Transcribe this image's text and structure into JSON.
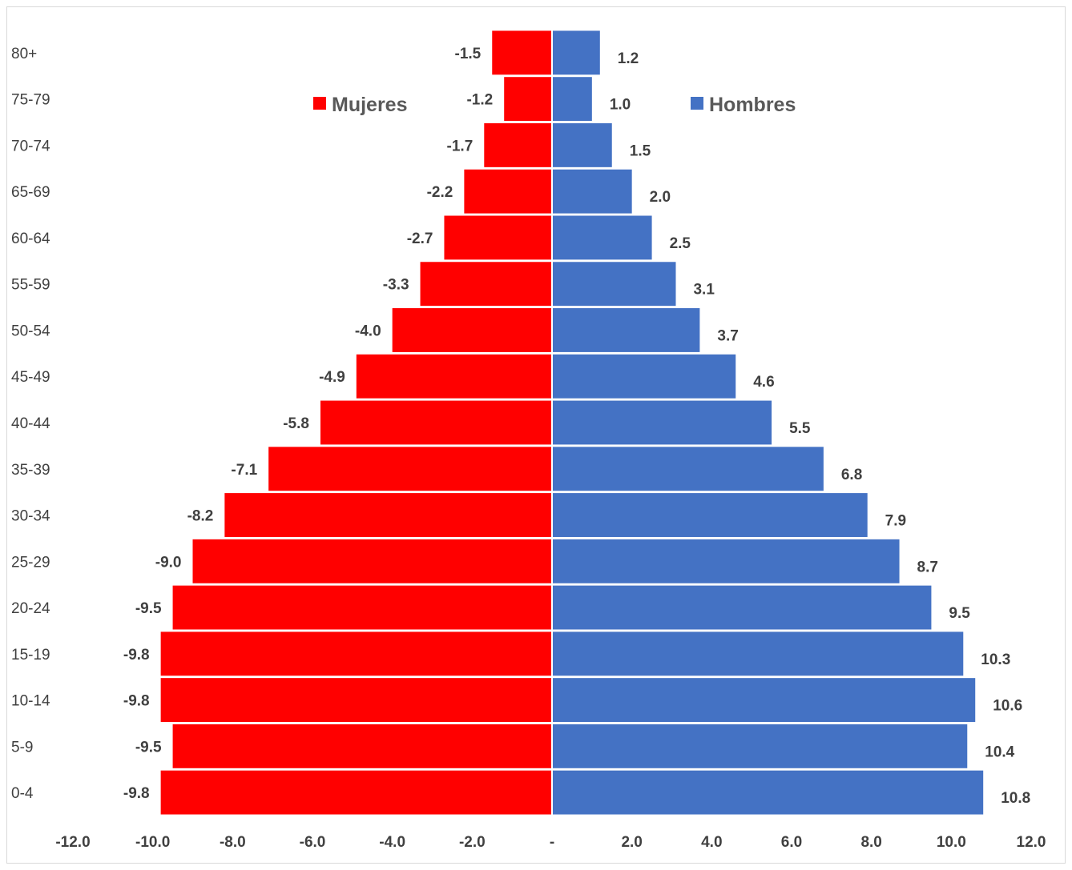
{
  "chart_data": {
    "type": "bar",
    "orientation": "horizontal",
    "stacked": false,
    "categories": [
      "80+",
      "75-79",
      "70-74",
      "65-69",
      "60-64",
      "55-59",
      "50-54",
      "45-49",
      "40-44",
      "35-39",
      "30-34",
      "25-29",
      "20-24",
      "15-19",
      "10-14",
      "5-9",
      "0-4"
    ],
    "series": [
      {
        "name": "Mujeres",
        "color": "#ff0000",
        "values": [
          -1.5,
          -1.2,
          -1.7,
          -2.2,
          -2.7,
          -3.3,
          -4.0,
          -4.9,
          -5.8,
          -7.1,
          -8.2,
          -9.0,
          -9.5,
          -9.8,
          -9.8,
          -9.5,
          -9.8
        ],
        "labels": [
          "-1.5",
          "-1.2",
          "-1.7",
          "-2.2",
          "-2.7",
          "-3.3",
          "-4.0",
          "-4.9",
          "-5.8",
          "-7.1",
          "-8.2",
          "-9.0",
          "-9.5",
          "-9.8",
          "-9.8",
          "-9.5",
          "-9.8"
        ]
      },
      {
        "name": "Hombres",
        "color": "#4472c4",
        "values": [
          1.2,
          1.0,
          1.5,
          2.0,
          2.5,
          3.1,
          3.7,
          4.6,
          5.5,
          6.8,
          7.9,
          8.7,
          9.5,
          10.3,
          10.6,
          10.4,
          10.8
        ],
        "labels": [
          "1.2",
          "1.0",
          "1.5",
          "2.0",
          "2.5",
          "3.1",
          "3.7",
          "4.6",
          "5.5",
          "6.8",
          "7.9",
          "8.7",
          "9.5",
          "10.3",
          "10.6",
          "10.4",
          "10.8"
        ]
      }
    ],
    "xlim": [
      -12,
      12
    ],
    "x_ticks": [
      -12,
      -10,
      -8,
      -6,
      -4,
      -2,
      0,
      2,
      4,
      6,
      8,
      10,
      12
    ],
    "x_tick_labels": [
      "-12.0",
      "-10.0",
      "-8.0",
      "-6.0",
      "-4.0",
      "-2.0",
      "-",
      "2.0",
      "4.0",
      "6.0",
      "8.0",
      "10.0",
      "12.0"
    ],
    "title": "",
    "xlabel": "",
    "ylabel": "",
    "grid": false,
    "legend": "inside-top"
  }
}
